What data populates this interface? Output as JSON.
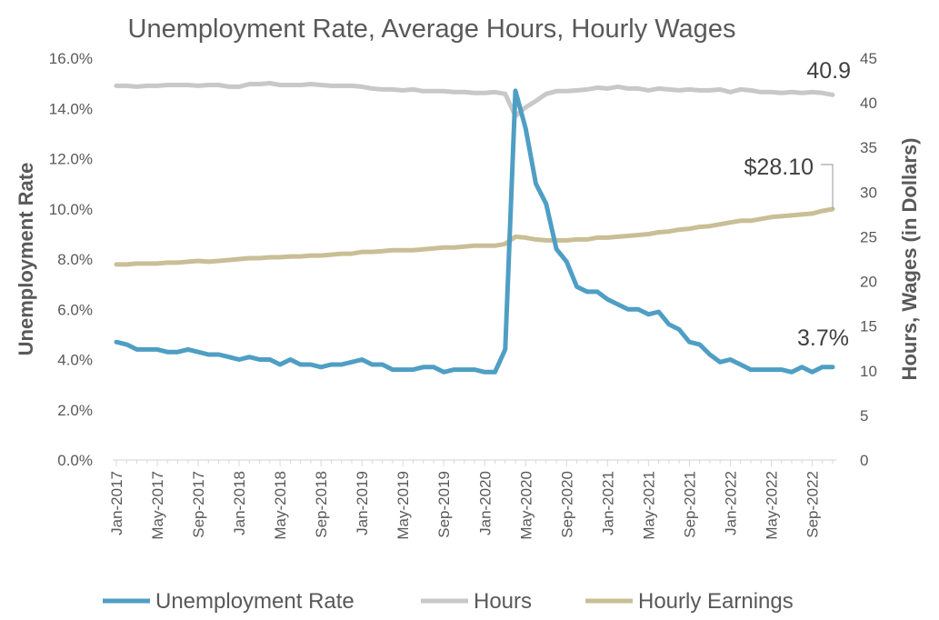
{
  "chart_data": {
    "type": "line",
    "title": "Unemployment Rate, Average Hours, Hourly Wages",
    "x_start": "2017-01",
    "x_tick_labels": [
      "Jan-2017",
      "May-2017",
      "Sep-2017",
      "Jan-2018",
      "May-2018",
      "Sep-2018",
      "Jan-2019",
      "May-2019",
      "Sep-2019",
      "Jan-2020",
      "May-2020",
      "Sep-2020",
      "Jan-2021",
      "May-2021",
      "Sep-2021",
      "Jan-2022",
      "May-2022",
      "Sep-2022"
    ],
    "y_left": {
      "label": "Unemployment Rate",
      "range": [
        0,
        16
      ],
      "ticks": [
        0,
        2,
        4,
        6,
        8,
        10,
        12,
        14,
        16
      ],
      "tick_labels": [
        "0.0%",
        "2.0%",
        "4.0%",
        "6.0%",
        "8.0%",
        "10.0%",
        "12.0%",
        "14.0%",
        "16.0%"
      ]
    },
    "y_right": {
      "label": "Hours, Wages (in Dollars)",
      "range": [
        0,
        45
      ],
      "ticks": [
        0,
        5,
        10,
        15,
        20,
        25,
        30,
        35,
        40,
        45
      ],
      "tick_labels": [
        "0",
        "5",
        "10",
        "15",
        "20",
        "25",
        "30",
        "35",
        "40",
        "45"
      ]
    },
    "grid": false,
    "legend_position": "bottom",
    "series": [
      {
        "name": "Unemployment Rate",
        "axis": "left",
        "color": "#4f9ec4",
        "values": [
          4.7,
          4.6,
          4.4,
          4.4,
          4.4,
          4.3,
          4.3,
          4.4,
          4.3,
          4.2,
          4.2,
          4.1,
          4.0,
          4.1,
          4.0,
          4.0,
          3.8,
          4.0,
          3.8,
          3.8,
          3.7,
          3.8,
          3.8,
          3.9,
          4.0,
          3.8,
          3.8,
          3.6,
          3.6,
          3.6,
          3.7,
          3.7,
          3.5,
          3.6,
          3.6,
          3.6,
          3.5,
          3.5,
          4.4,
          14.7,
          13.2,
          11.0,
          10.2,
          8.4,
          7.9,
          6.9,
          6.7,
          6.7,
          6.4,
          6.2,
          6.0,
          6.0,
          5.8,
          5.9,
          5.4,
          5.2,
          4.7,
          4.6,
          4.2,
          3.9,
          4.0,
          3.8,
          3.6,
          3.6,
          3.6,
          3.6,
          3.5,
          3.7,
          3.5,
          3.7,
          3.7
        ]
      },
      {
        "name": "Hours",
        "axis": "right",
        "color": "#c8c8c8",
        "values": [
          41.9,
          41.9,
          41.8,
          41.9,
          41.9,
          42.0,
          42.0,
          42.0,
          41.9,
          42.0,
          42.0,
          41.8,
          41.8,
          42.1,
          42.1,
          42.2,
          42.0,
          42.0,
          42.0,
          42.1,
          42.0,
          41.9,
          41.9,
          41.9,
          41.8,
          41.6,
          41.5,
          41.5,
          41.4,
          41.5,
          41.3,
          41.3,
          41.3,
          41.2,
          41.2,
          41.1,
          41.1,
          41.2,
          41.0,
          38.5,
          39.5,
          40.2,
          41.0,
          41.3,
          41.3,
          41.4,
          41.5,
          41.7,
          41.6,
          41.8,
          41.6,
          41.6,
          41.4,
          41.6,
          41.5,
          41.4,
          41.5,
          41.4,
          41.4,
          41.5,
          41.2,
          41.5,
          41.4,
          41.2,
          41.2,
          41.1,
          41.2,
          41.1,
          41.2,
          41.1,
          40.9
        ]
      },
      {
        "name": "Hourly Earnings",
        "axis": "right",
        "color": "#c9be96",
        "values": [
          21.9,
          21.9,
          22.0,
          22.0,
          22.0,
          22.1,
          22.1,
          22.2,
          22.3,
          22.2,
          22.3,
          22.4,
          22.5,
          22.6,
          22.6,
          22.7,
          22.7,
          22.8,
          22.8,
          22.9,
          22.9,
          23.0,
          23.1,
          23.1,
          23.3,
          23.3,
          23.4,
          23.5,
          23.5,
          23.5,
          23.6,
          23.7,
          23.8,
          23.8,
          23.9,
          24.0,
          24.0,
          24.0,
          24.2,
          25.0,
          24.9,
          24.7,
          24.6,
          24.6,
          24.6,
          24.7,
          24.7,
          24.9,
          24.9,
          25.0,
          25.1,
          25.2,
          25.3,
          25.5,
          25.6,
          25.8,
          25.9,
          26.1,
          26.2,
          26.4,
          26.6,
          26.8,
          26.8,
          27.0,
          27.2,
          27.3,
          27.4,
          27.5,
          27.6,
          27.9,
          28.1
        ]
      }
    ],
    "annotations": {
      "hours_last": "40.9",
      "wages_last": "$28.10",
      "unemp_last": "3.7%"
    }
  }
}
